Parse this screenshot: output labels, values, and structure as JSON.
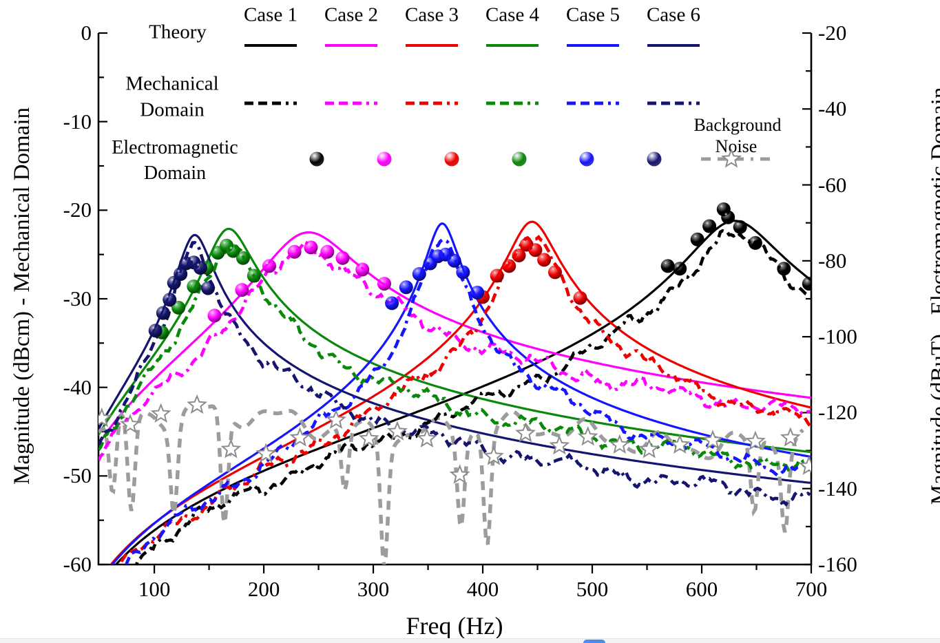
{
  "chart_data": {
    "type": "line",
    "xlabel": "Freq (Hz)",
    "ylabel_left": "Magnitude (dBcm) - Mechanical Domain",
    "ylabel_right": "Magnitude (dBuT) - Electromagnetic Domain",
    "x_range": [
      49,
      700
    ],
    "x_ticks": [
      100,
      200,
      300,
      400,
      500,
      600,
      700
    ],
    "x_minor_ticks": [
      150,
      250,
      350,
      450,
      550,
      650
    ],
    "y_left_range": [
      -60,
      0
    ],
    "y_left_ticks": [
      0,
      -10,
      -20,
      -30,
      -40,
      -50,
      -60
    ],
    "y_right_range": [
      -160,
      -20
    ],
    "y_right_ticks": [
      -20,
      -40,
      -60,
      -80,
      -100,
      -120,
      -140,
      -160
    ],
    "grid": false,
    "legend": {
      "theory_label": "Theory",
      "mechanical_label_lines": [
        "Mechanical",
        "Domain"
      ],
      "electromagnetic_label_lines": [
        "Electromagnetic",
        "Domain"
      ],
      "background_noise_lines": [
        "Background",
        "Noise"
      ],
      "cases": [
        {
          "label": "Case 1",
          "color": "#000000"
        },
        {
          "label": "Case 2",
          "color": "#ff00ff"
        },
        {
          "label": "Case 3",
          "color": "#ee0000"
        },
        {
          "label": "Case 4",
          "color": "#098909"
        },
        {
          "label": "Case 5",
          "color": "#1515ff"
        },
        {
          "label": "Case 6",
          "color": "#151570"
        }
      ],
      "noise_color": "#9c9c9c"
    },
    "series": [
      {
        "name": "Case 1",
        "color": "#000000",
        "resonance_freq_hz": 630,
        "peak_dB": -21.2,
        "zeta": 0.055,
        "em_points": [
          [
            569,
            -26.3
          ],
          [
            580,
            -26.6
          ],
          [
            596,
            -23.3
          ],
          [
            607,
            -21.8
          ],
          [
            620,
            -19.9
          ],
          [
            624,
            -20.8
          ],
          [
            635,
            -21.9
          ],
          [
            649,
            -23.7
          ],
          [
            675,
            -26.6
          ],
          [
            698,
            -28.3
          ]
        ]
      },
      {
        "name": "Case 2",
        "color": "#ff00ff",
        "resonance_freq_hz": 241,
        "peak_dB": -22.5,
        "zeta": 0.15,
        "em_points": [
          [
            155,
            -31.9
          ],
          [
            180,
            -29.0
          ],
          [
            205,
            -26.3
          ],
          [
            228,
            -24.7
          ],
          [
            243,
            -24.2
          ],
          [
            258,
            -24.7
          ],
          [
            272,
            -25.4
          ],
          [
            290,
            -26.7
          ],
          [
            310,
            -28.3
          ]
        ]
      },
      {
        "name": "Case 3",
        "color": "#ee0000",
        "resonance_freq_hz": 445,
        "peak_dB": -21.3,
        "zeta": 0.042,
        "em_points": [
          [
            400,
            -29.8
          ],
          [
            413,
            -27.4
          ],
          [
            424,
            -26.3
          ],
          [
            433,
            -25.1
          ],
          [
            440,
            -23.9
          ],
          [
            448,
            -24.5
          ],
          [
            456,
            -25.6
          ],
          [
            466,
            -27.0
          ],
          [
            489,
            -29.9
          ]
        ]
      },
      {
        "name": "Case 4",
        "color": "#098909",
        "resonance_freq_hz": 168,
        "peak_dB": -22.1,
        "zeta": 0.108,
        "em_points": [
          [
            107,
            -33.8
          ],
          [
            122,
            -31.0
          ],
          [
            136,
            -28.6
          ],
          [
            148,
            -26.5
          ],
          [
            158,
            -24.8
          ],
          [
            166,
            -24.0
          ],
          [
            172,
            -24.6
          ],
          [
            181,
            -25.4
          ],
          [
            191,
            -27.4
          ]
        ]
      },
      {
        "name": "Case 5",
        "color": "#1515ff",
        "resonance_freq_hz": 363,
        "peak_dB": -21.5,
        "zeta": 0.034,
        "em_points": [
          [
            317,
            -30.5
          ],
          [
            330,
            -28.7
          ],
          [
            342,
            -27.2
          ],
          [
            352,
            -26.0
          ],
          [
            359,
            -25.2
          ],
          [
            366,
            -25.0
          ],
          [
            374,
            -25.7
          ],
          [
            382,
            -27.0
          ],
          [
            395,
            -29.3
          ]
        ]
      },
      {
        "name": "Case 6",
        "color": "#151570",
        "resonance_freq_hz": 137,
        "peak_dB": -22.8,
        "zeta": 0.098,
        "em_points": [
          [
            101,
            -33.6
          ],
          [
            108,
            -31.6
          ],
          [
            114,
            -30.1
          ],
          [
            118,
            -28.2
          ],
          [
            124,
            -27.2
          ],
          [
            129,
            -26.0
          ],
          [
            136,
            -25.9
          ],
          [
            142,
            -26.5
          ],
          [
            149,
            -28.8
          ]
        ]
      }
    ],
    "mechanical_offset_dB": -1.7,
    "background_noise": {
      "name": "Background Noise",
      "color": "#9c9c9c",
      "baseline_start_dB": -43.0,
      "baseline_slope_dB_per_hz": -0.0055,
      "notches": [
        {
          "f": 62,
          "depth": 9
        },
        {
          "f": 79,
          "depth": 11
        },
        {
          "f": 118,
          "depth": 10
        },
        {
          "f": 164,
          "depth": 13
        },
        {
          "f": 274,
          "depth": 7
        },
        {
          "f": 310,
          "depth": 14
        },
        {
          "f": 380,
          "depth": 10
        },
        {
          "f": 404,
          "depth": 13
        },
        {
          "f": 648,
          "depth": 8
        },
        {
          "f": 676,
          "depth": 9
        }
      ],
      "stars": [
        [
          52,
          -43.5
        ],
        [
          78,
          -44.2
        ],
        [
          106,
          -43.0
        ],
        [
          139,
          -42.0
        ],
        [
          170,
          -47.0
        ],
        [
          202,
          -47.5
        ],
        [
          233,
          -45.7
        ],
        [
          266,
          -43.7
        ],
        [
          296,
          -45.8
        ],
        [
          322,
          -45.0
        ],
        [
          349,
          -45.8
        ],
        [
          379,
          -49.9
        ],
        [
          410,
          -47.8
        ],
        [
          439,
          -45.2
        ],
        [
          470,
          -46.6
        ],
        [
          496,
          -45.6
        ],
        [
          525,
          -46.5
        ],
        [
          552,
          -47.0
        ],
        [
          580,
          -46.5
        ],
        [
          610,
          -46.0
        ],
        [
          649,
          -46.1
        ],
        [
          681,
          -45.7
        ],
        [
          698,
          -48.9
        ]
      ]
    }
  },
  "page": {
    "background_color": "#ffffff",
    "bottom_bar_color": "#f1f3f4",
    "floating_button_color": "#4a8df0"
  }
}
